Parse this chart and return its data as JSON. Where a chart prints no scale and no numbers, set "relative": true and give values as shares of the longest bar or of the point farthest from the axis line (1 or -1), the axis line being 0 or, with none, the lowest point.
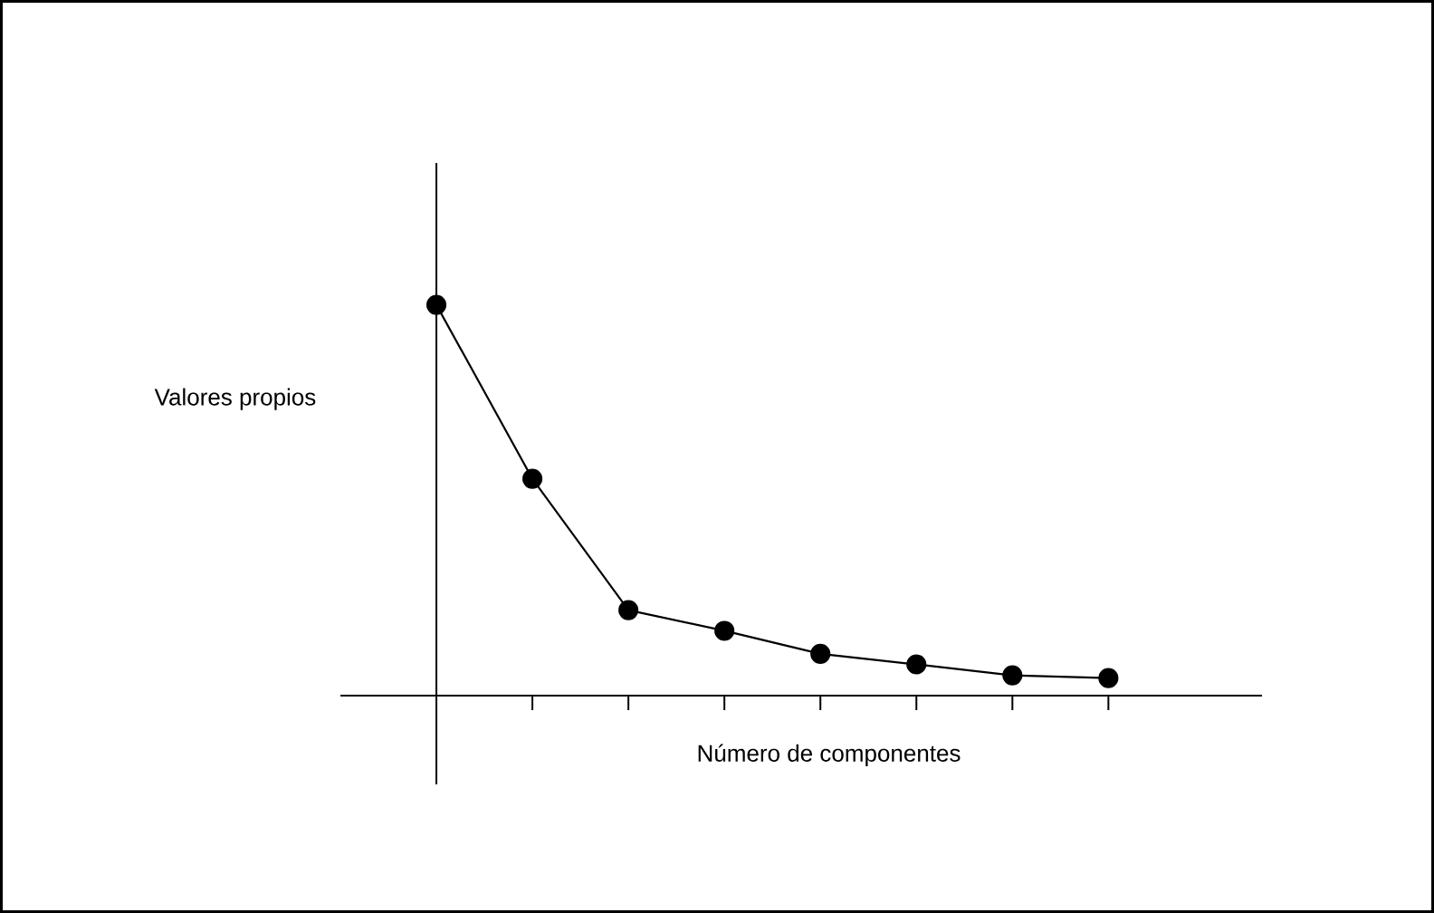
{
  "chart_data": {
    "type": "line",
    "xlabel": "Número de componentes",
    "ylabel": "Valores propios",
    "relative": true,
    "categories": [
      null,
      null,
      null,
      null,
      null,
      null,
      null,
      null
    ],
    "marker": "circle",
    "line_style": "solid",
    "series": [
      {
        "color": "#000000",
        "values": [
          1,
          0.555,
          0.219,
          0.166,
          0.107,
          0.08,
          0.052,
          0.045
        ]
      }
    ]
  }
}
